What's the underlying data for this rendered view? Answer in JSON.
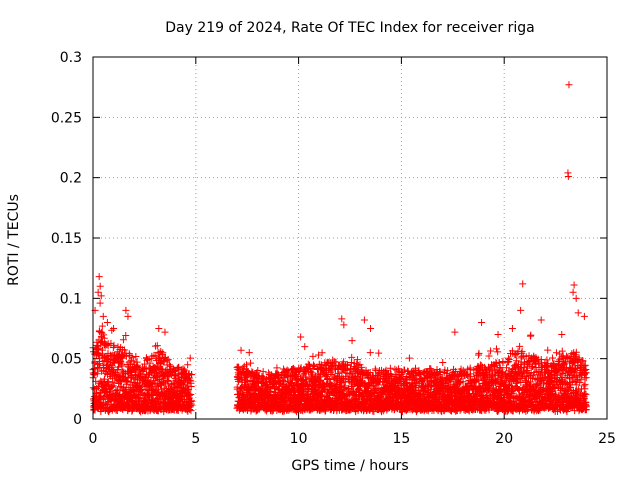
{
  "chart_data": {
    "type": "scatter",
    "title": "Day 219 of 2024, Rate Of TEC Index for receiver riga",
    "xlabel": "GPS time / hours",
    "ylabel": "ROTI / TECUs",
    "xlim": [
      0,
      25
    ],
    "ylim": [
      0,
      0.3
    ],
    "xticks": [
      0,
      5,
      10,
      15,
      20,
      25
    ],
    "yticks": [
      0,
      0.05,
      0.1,
      0.15,
      0.2,
      0.25,
      0.3
    ],
    "xtick_labels": [
      "0",
      "5",
      "10",
      "15",
      "20",
      "25"
    ],
    "ytick_labels": [
      "0",
      "0.05",
      "0.1",
      "0.15",
      "0.2",
      "0.25",
      "0.3"
    ],
    "grid": true,
    "marker": "+",
    "series": [
      {
        "name": "ROTI",
        "color": "#ff0000",
        "data_gap": [
          4.8,
          7.0
        ],
        "envelope": [
          {
            "x": 0.0,
            "base": 0.028,
            "spread": 0.045
          },
          {
            "x": 0.3,
            "base": 0.035,
            "spread": 0.07
          },
          {
            "x": 0.6,
            "base": 0.032,
            "spread": 0.055
          },
          {
            "x": 1.0,
            "base": 0.03,
            "spread": 0.045
          },
          {
            "x": 1.6,
            "base": 0.028,
            "spread": 0.04
          },
          {
            "x": 2.2,
            "base": 0.024,
            "spread": 0.03
          },
          {
            "x": 2.8,
            "base": 0.026,
            "spread": 0.04
          },
          {
            "x": 3.4,
            "base": 0.028,
            "spread": 0.04
          },
          {
            "x": 4.0,
            "base": 0.022,
            "spread": 0.025
          },
          {
            "x": 4.8,
            "base": 0.02,
            "spread": 0.022
          },
          {
            "x": 7.0,
            "base": 0.02,
            "spread": 0.03
          },
          {
            "x": 8.5,
            "base": 0.02,
            "spread": 0.018
          },
          {
            "x": 10.2,
            "base": 0.022,
            "spread": 0.03
          },
          {
            "x": 12.0,
            "base": 0.022,
            "spread": 0.035
          },
          {
            "x": 14.0,
            "base": 0.022,
            "spread": 0.022
          },
          {
            "x": 16.0,
            "base": 0.022,
            "spread": 0.02
          },
          {
            "x": 18.0,
            "base": 0.022,
            "spread": 0.022
          },
          {
            "x": 19.5,
            "base": 0.024,
            "spread": 0.03
          },
          {
            "x": 20.8,
            "base": 0.028,
            "spread": 0.045
          },
          {
            "x": 22.0,
            "base": 0.024,
            "spread": 0.03
          },
          {
            "x": 23.3,
            "base": 0.028,
            "spread": 0.05
          },
          {
            "x": 24.0,
            "base": 0.022,
            "spread": 0.03
          }
        ],
        "notable_points": [
          {
            "x": 0.1,
            "y": 0.09
          },
          {
            "x": 0.25,
            "y": 0.105
          },
          {
            "x": 0.3,
            "y": 0.118
          },
          {
            "x": 0.35,
            "y": 0.11
          },
          {
            "x": 0.4,
            "y": 0.102
          },
          {
            "x": 0.5,
            "y": 0.085
          },
          {
            "x": 0.7,
            "y": 0.08
          },
          {
            "x": 1.0,
            "y": 0.075
          },
          {
            "x": 1.6,
            "y": 0.09
          },
          {
            "x": 1.7,
            "y": 0.085
          },
          {
            "x": 3.2,
            "y": 0.075
          },
          {
            "x": 3.5,
            "y": 0.072
          },
          {
            "x": 7.2,
            "y": 0.057
          },
          {
            "x": 7.6,
            "y": 0.055
          },
          {
            "x": 10.1,
            "y": 0.068
          },
          {
            "x": 10.3,
            "y": 0.06
          },
          {
            "x": 12.1,
            "y": 0.083
          },
          {
            "x": 12.2,
            "y": 0.078
          },
          {
            "x": 12.6,
            "y": 0.065
          },
          {
            "x": 13.2,
            "y": 0.082
          },
          {
            "x": 13.5,
            "y": 0.075
          },
          {
            "x": 17.6,
            "y": 0.072
          },
          {
            "x": 18.9,
            "y": 0.08
          },
          {
            "x": 19.7,
            "y": 0.07
          },
          {
            "x": 20.4,
            "y": 0.075
          },
          {
            "x": 20.8,
            "y": 0.09
          },
          {
            "x": 20.9,
            "y": 0.112
          },
          {
            "x": 21.8,
            "y": 0.082
          },
          {
            "x": 22.8,
            "y": 0.07
          },
          {
            "x": 23.15,
            "y": 0.277
          },
          {
            "x": 23.1,
            "y": 0.204
          },
          {
            "x": 23.12,
            "y": 0.201
          },
          {
            "x": 23.4,
            "y": 0.111
          },
          {
            "x": 23.35,
            "y": 0.105
          },
          {
            "x": 23.5,
            "y": 0.1
          },
          {
            "x": 23.6,
            "y": 0.088
          },
          {
            "x": 23.9,
            "y": 0.085
          }
        ]
      }
    ]
  }
}
